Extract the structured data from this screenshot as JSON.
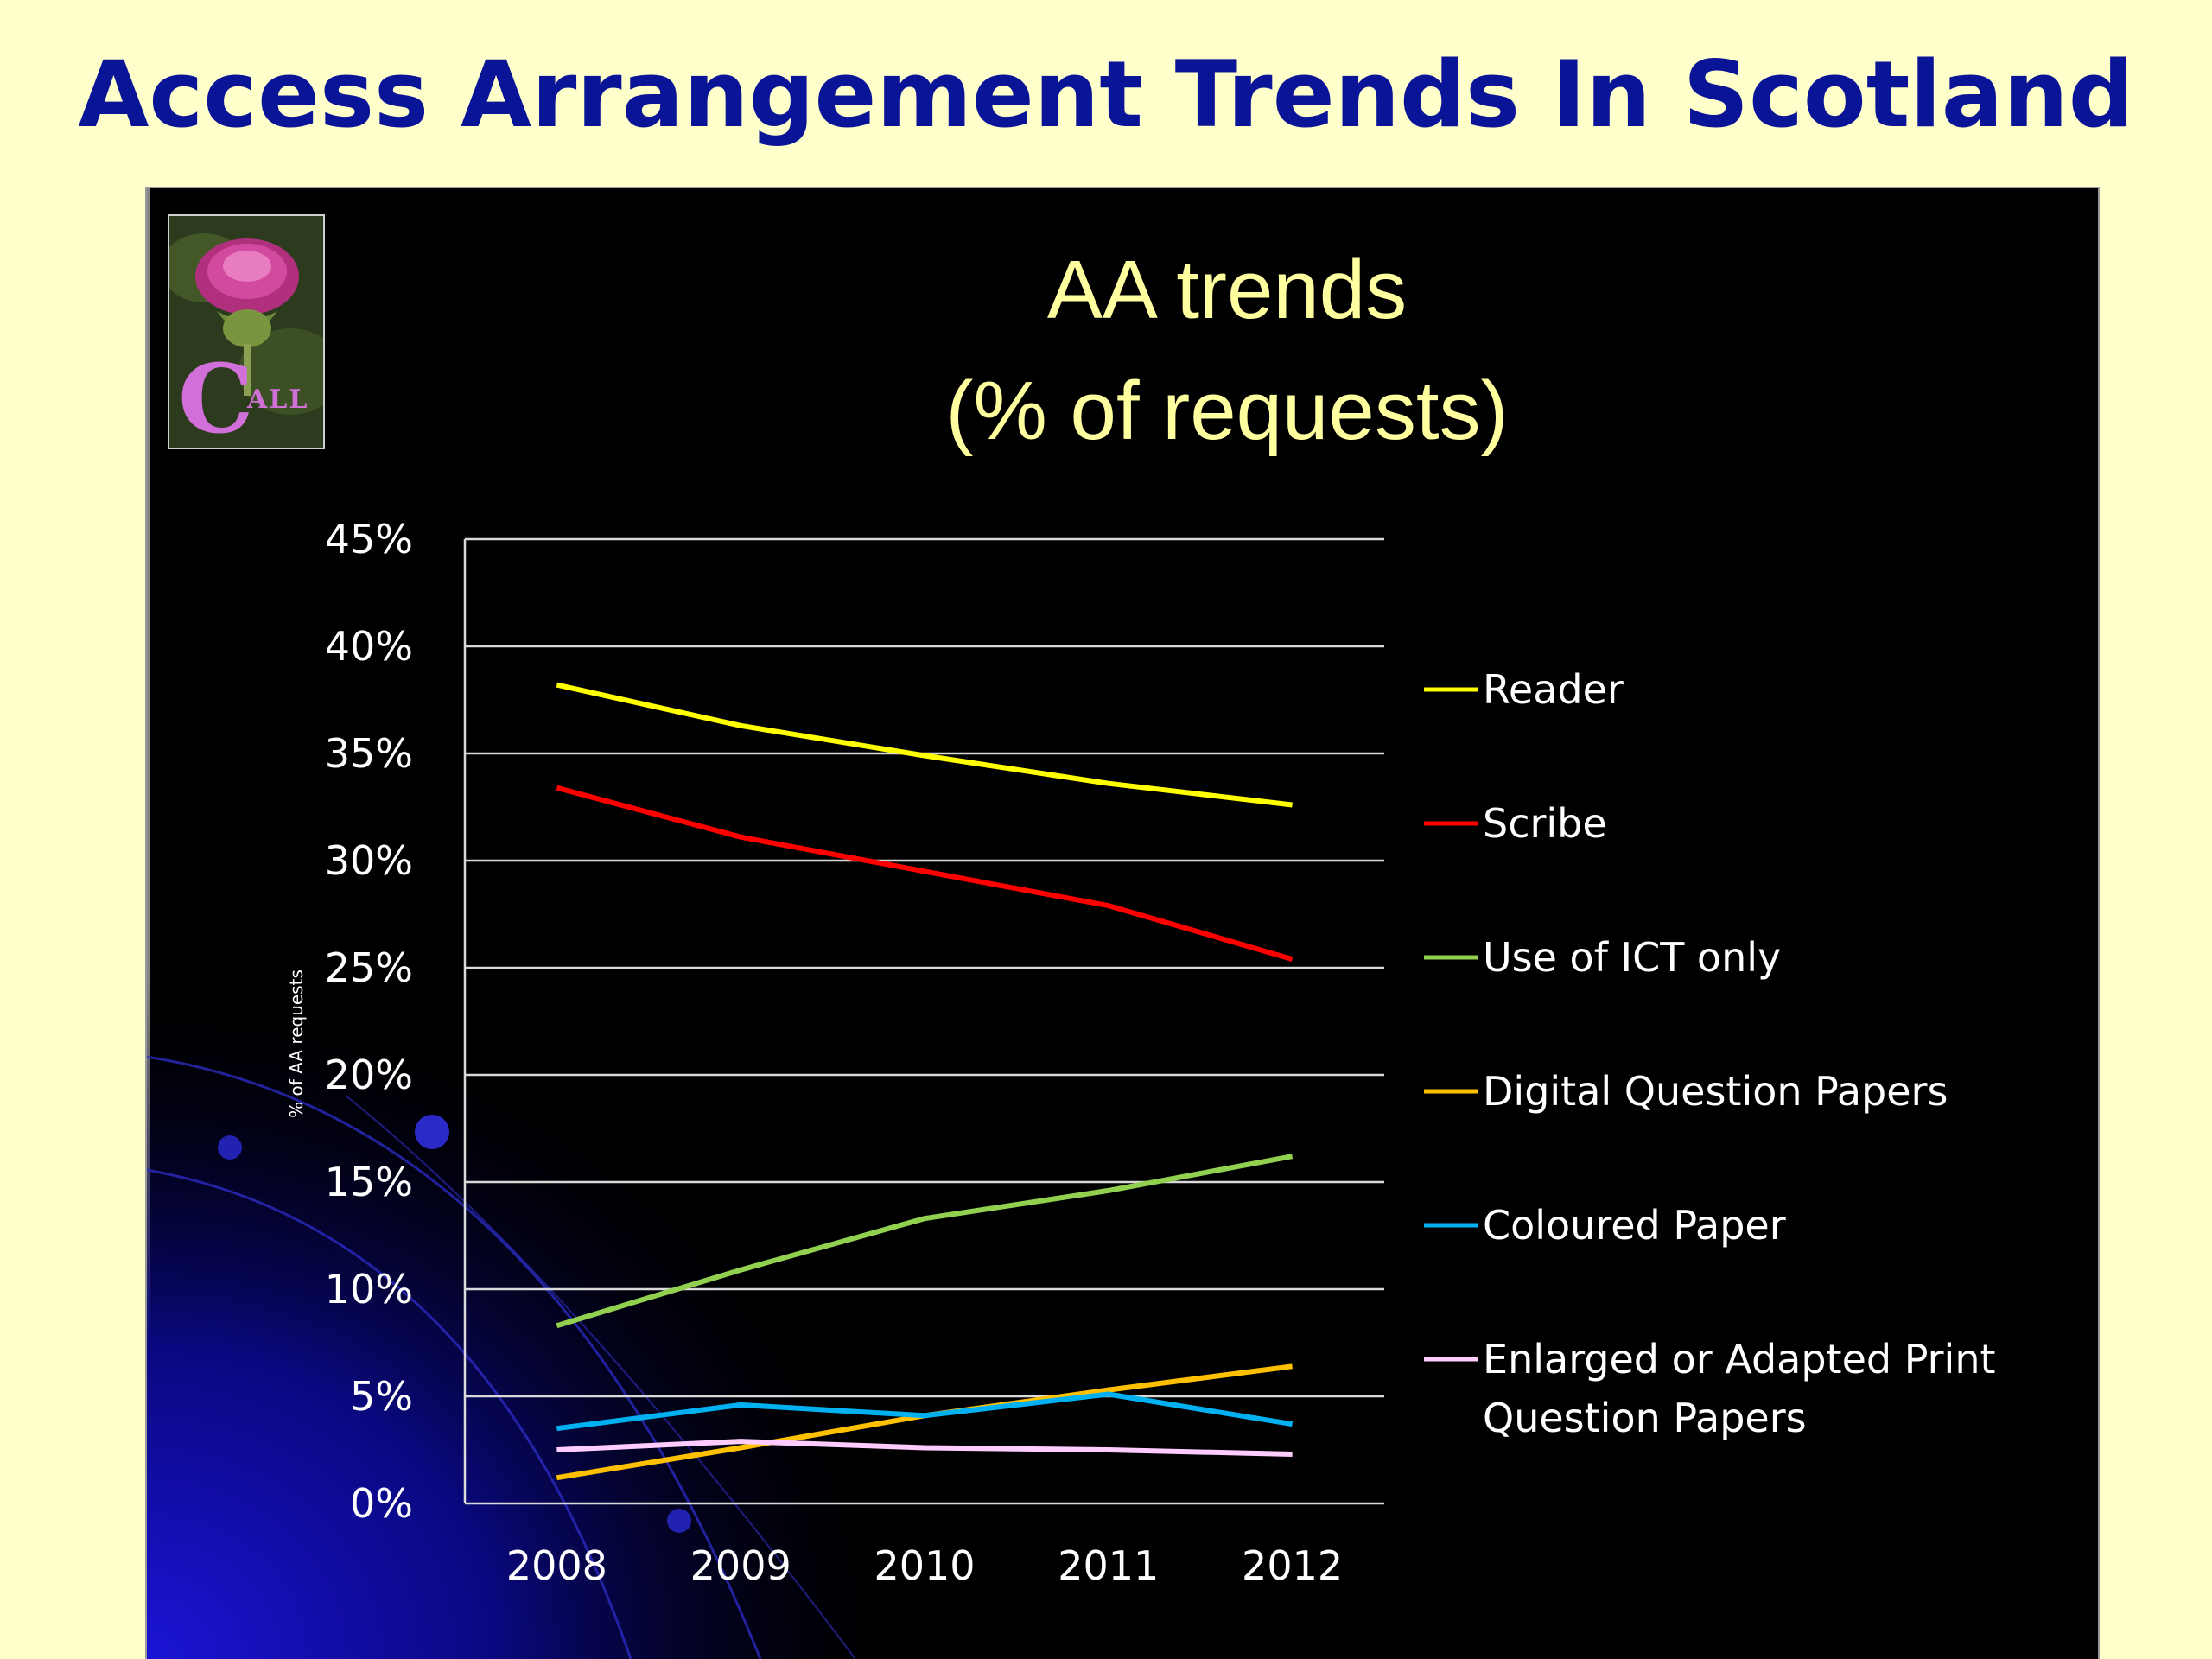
{
  "slide": {
    "title": "Access Arrangement Trends In Scotland"
  },
  "logo": {
    "text": "CALL"
  },
  "chart_data": {
    "type": "line",
    "title": "AA trends",
    "subtitle": "(% of requests)",
    "xlabel": "",
    "ylabel": "% of AA requests",
    "categories": [
      "2008",
      "2009",
      "2010",
      "2011",
      "2012"
    ],
    "ylim": [
      0,
      45
    ],
    "yticks": [
      0,
      5,
      10,
      15,
      20,
      25,
      30,
      35,
      40,
      45
    ],
    "ytick_labels": [
      "0%",
      "5%",
      "10%",
      "15%",
      "20%",
      "25%",
      "30%",
      "35%",
      "40%",
      "45%"
    ],
    "grid": true,
    "legend_position": "right",
    "series": [
      {
        "name": "Reader",
        "color": "#ffff00",
        "values": [
          38.2,
          36.3,
          34.9,
          33.6,
          32.6
        ]
      },
      {
        "name": "Scribe",
        "color": "#ff0000",
        "values": [
          33.4,
          31.1,
          29.5,
          27.9,
          25.4
        ]
      },
      {
        "name": "Use of ICT only",
        "color": "#92d050",
        "values": [
          8.3,
          10.9,
          13.3,
          14.6,
          16.2
        ]
      },
      {
        "name": "Digital Question Papers",
        "color": "#ffc000",
        "values": [
          1.2,
          2.6,
          4.1,
          5.3,
          6.4
        ]
      },
      {
        "name": "Coloured Paper",
        "color": "#00b0f0",
        "values": [
          3.5,
          4.6,
          4.1,
          5.1,
          3.7
        ]
      },
      {
        "name": "Enlarged or Adapted Print Question Papers",
        "legend_lines": [
          "Enlarged or Adapted Print",
          "Question Papers"
        ],
        "color": "#ffccff",
        "values": [
          2.5,
          2.9,
          2.6,
          2.5,
          2.3
        ]
      }
    ]
  }
}
